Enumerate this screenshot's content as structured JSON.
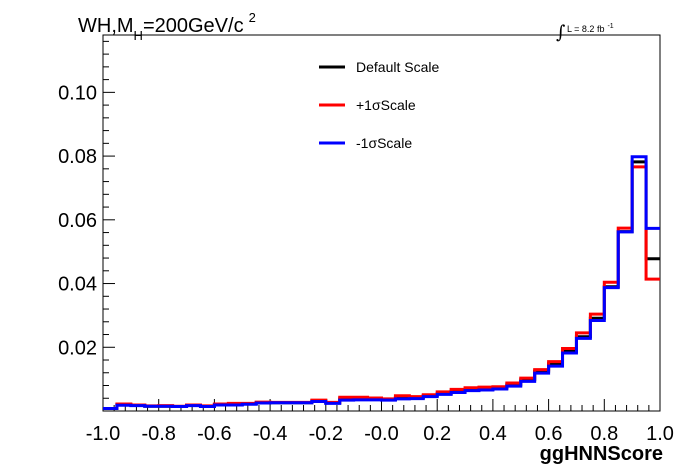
{
  "chart_data": {
    "type": "line",
    "title": {
      "main": "WH,M",
      "sub": "H",
      "rest": "=200GeV/c",
      "sup": "2"
    },
    "lumi": {
      "integral": "∫",
      "text": "L = 8.2 fb",
      "sup": "-1"
    },
    "xlabel": "ggHNNScore",
    "ylabel": "",
    "xlim": [
      -1.0,
      1.0
    ],
    "ylim": [
      0.0,
      0.118
    ],
    "x_ticks": [
      "-1.0",
      "-0.8",
      "-0.6",
      "-0.4",
      "-0.2",
      "-0.0",
      "0.2",
      "0.4",
      "0.6",
      "0.8",
      "1.0"
    ],
    "x_tick_values": [
      -1.0,
      -0.8,
      -0.6,
      -0.4,
      -0.2,
      0.0,
      0.2,
      0.4,
      0.6,
      0.8,
      1.0
    ],
    "y_ticks": [
      "0.02",
      "0.04",
      "0.06",
      "0.08",
      "0.10"
    ],
    "y_tick_values": [
      0.02,
      0.04,
      0.06,
      0.08,
      0.1
    ],
    "bin_edges": [
      -1.0,
      -0.95,
      -0.9,
      -0.85,
      -0.8,
      -0.75,
      -0.7,
      -0.65,
      -0.6,
      -0.55,
      -0.5,
      -0.45,
      -0.4,
      -0.35,
      -0.3,
      -0.25,
      -0.2,
      -0.15,
      -0.1,
      -0.05,
      0.0,
      0.05,
      0.1,
      0.15,
      0.2,
      0.25,
      0.3,
      0.35,
      0.4,
      0.45,
      0.5,
      0.55,
      0.6,
      0.65,
      0.7,
      0.75,
      0.8,
      0.85,
      0.9,
      0.95,
      1.0
    ],
    "legend_position": "top-center",
    "series": [
      {
        "name": "Default Scale",
        "color": "#000000",
        "values": [
          0.0008,
          0.002,
          0.0018,
          0.0015,
          0.0015,
          0.0014,
          0.0018,
          0.0014,
          0.002,
          0.002,
          0.0022,
          0.0026,
          0.0026,
          0.0026,
          0.0026,
          0.0032,
          0.0025,
          0.0038,
          0.0038,
          0.0038,
          0.0036,
          0.0042,
          0.0042,
          0.0048,
          0.0054,
          0.0062,
          0.0066,
          0.0068,
          0.0072,
          0.0082,
          0.0098,
          0.0125,
          0.0148,
          0.0187,
          0.0233,
          0.0291,
          0.039,
          0.0563,
          0.0782,
          0.0478
        ]
      },
      {
        "name": "+1σScale",
        "color": "#ff0000",
        "values": [
          0.0008,
          0.0022,
          0.0019,
          0.0016,
          0.0017,
          0.0015,
          0.0019,
          0.0016,
          0.0022,
          0.0024,
          0.0024,
          0.0028,
          0.0027,
          0.0027,
          0.0027,
          0.0034,
          0.0027,
          0.0043,
          0.0043,
          0.0041,
          0.0038,
          0.0048,
          0.0045,
          0.0051,
          0.006,
          0.0068,
          0.0073,
          0.0075,
          0.0076,
          0.0088,
          0.0103,
          0.013,
          0.0155,
          0.0196,
          0.0245,
          0.0304,
          0.0404,
          0.0574,
          0.0766,
          0.0414
        ]
      },
      {
        "name": "-1σScale",
        "color": "#0000ff",
        "values": [
          0.0008,
          0.0018,
          0.0017,
          0.0015,
          0.0015,
          0.0014,
          0.0017,
          0.0014,
          0.0019,
          0.0019,
          0.0021,
          0.0025,
          0.0026,
          0.0026,
          0.0026,
          0.003,
          0.0024,
          0.0034,
          0.0035,
          0.0035,
          0.0034,
          0.0038,
          0.0039,
          0.0045,
          0.0052,
          0.0058,
          0.0064,
          0.0066,
          0.0069,
          0.0078,
          0.0093,
          0.0119,
          0.0141,
          0.0182,
          0.0228,
          0.0284,
          0.0387,
          0.0562,
          0.0798,
          0.0573
        ]
      }
    ]
  }
}
